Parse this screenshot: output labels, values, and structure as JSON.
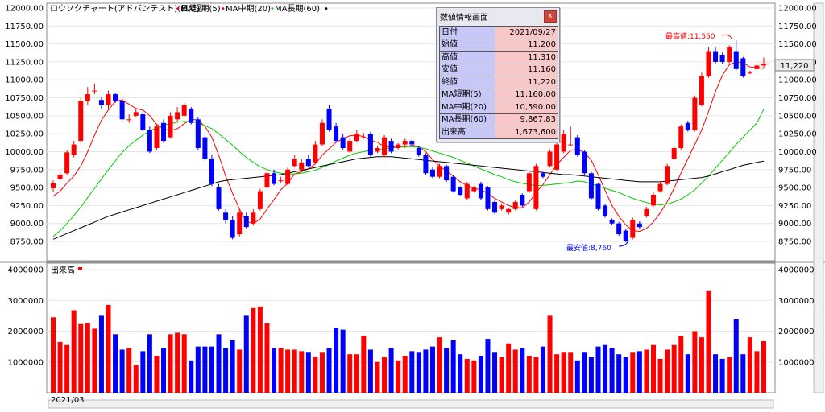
{
  "legend": {
    "chart_title": "ロウソクチャート(アドバンテスト)(日足)",
    "ma_short": "MA短期(5)",
    "ma_mid": "MA中期(20)",
    "ma_long": "MA長期(60)"
  },
  "volume_legend": "出来高",
  "date_label": "2021/03",
  "price_ticks": [
    "12000.00",
    "11750.00",
    "11500.00",
    "11250.00",
    "11000.00",
    "10750.00",
    "10500.00",
    "10250.00",
    "10000.00",
    "9750.00",
    "9500.00",
    "9250.00",
    "9000.00",
    "8750.00"
  ],
  "volume_ticks": [
    "4000000",
    "3000000",
    "2000000",
    "1000000"
  ],
  "current_price_tag": "11,220",
  "high_annotation": "最高値:11,550",
  "low_annotation": "最安値:8,760",
  "colors": {
    "up": "#ff0000",
    "down": "#0000ff",
    "ma_short": "#ff0000",
    "ma_mid": "#00cc00",
    "ma_long": "#000000",
    "axis_bg": "#ffffff"
  },
  "info_panel": {
    "title": "数値情報画面",
    "close": "x",
    "rows": [
      {
        "label": "日付",
        "value": "2021/09/27"
      },
      {
        "label": "始値",
        "value": "11,200"
      },
      {
        "label": "高値",
        "value": "11,310"
      },
      {
        "label": "安値",
        "value": "11,160"
      },
      {
        "label": "終値",
        "value": "11,220"
      },
      {
        "label": "MA短期(5)",
        "value": "11,160.00"
      },
      {
        "label": "MA中期(20)",
        "value": "10,590.00"
      },
      {
        "label": "MA長期(60)",
        "value": "9,867.83"
      },
      {
        "label": "出来高",
        "value": "1,673,600"
      }
    ]
  },
  "chart_data": [
    {
      "type": "candlestick",
      "ylim": [
        8600,
        12000
      ],
      "open": [
        9490,
        9620,
        9700,
        9950,
        10150,
        10700,
        10850,
        10720,
        10650,
        10800,
        10700,
        10450,
        10500,
        10520,
        10300,
        10050,
        10400,
        10200,
        10450,
        10500,
        10600,
        10450,
        10200,
        9900,
        9500,
        9150,
        9050,
        8850,
        9100,
        9000,
        9200,
        9500,
        9700,
        9600,
        9550,
        9800,
        9750,
        9900,
        9850,
        10100,
        10600,
        10350,
        10200,
        10000,
        10150,
        10200,
        10250,
        10000,
        9950,
        10150,
        10050,
        10100,
        10150,
        10050,
        9950,
        9750,
        9650,
        9800,
        9650,
        9500,
        9350,
        9450,
        9550,
        9500,
        9300,
        9200,
        9150,
        9200,
        9400,
        9450,
        9200,
        9700,
        9800,
        9750,
        10000,
        10100,
        10200,
        10000,
        9700,
        9550,
        9250,
        9050,
        9000,
        8900,
        8800,
        9000,
        9100,
        9250,
        9450,
        9550,
        9900,
        10050,
        10400,
        10300,
        10650,
        11050,
        11400,
        11350,
        11250,
        11400,
        11300,
        11100,
        11150,
        11200
      ],
      "close": [
        9560,
        9680,
        9990,
        10100,
        10700,
        10800,
        10850,
        10650,
        10800,
        10700,
        10450,
        10450,
        10550,
        10300,
        10000,
        10350,
        10150,
        10500,
        10550,
        10650,
        10400,
        10050,
        9900,
        9550,
        9200,
        9050,
        8800,
        9150,
        8950,
        9150,
        9450,
        9700,
        9550,
        9600,
        9750,
        9900,
        9850,
        9800,
        10100,
        10400,
        10300,
        10150,
        10050,
        10150,
        10250,
        10200,
        9950,
        10050,
        10200,
        10000,
        10100,
        10150,
        10100,
        9950,
        9700,
        9650,
        9800,
        9600,
        9450,
        9400,
        9550,
        9500,
        9350,
        9200,
        9150,
        9250,
        9200,
        9300,
        9250,
        9700,
        9800,
        9650,
        10000,
        10100,
        10250,
        10100,
        9950,
        9700,
        9350,
        9200,
        9100,
        9000,
        8850,
        8760,
        9050,
        8950,
        9200,
        9400,
        9550,
        9800,
        10050,
        10350,
        10300,
        10750,
        11050,
        11400,
        11250,
        11250,
        11450,
        11150,
        11050,
        11100,
        11200,
        11220
      ],
      "high": [
        9600,
        9720,
        10020,
        10150,
        10750,
        10900,
        10950,
        10760,
        10850,
        10820,
        10750,
        10520,
        10600,
        10560,
        10350,
        10380,
        10450,
        10550,
        10620,
        10680,
        10620,
        10480,
        10230,
        9950,
        9550,
        9200,
        9100,
        9200,
        9150,
        9200,
        9480,
        9750,
        9750,
        9650,
        9780,
        9950,
        9900,
        9950,
        10150,
        10450,
        10650,
        10400,
        10250,
        10180,
        10300,
        10260,
        10280,
        10080,
        10230,
        10180,
        10120,
        10180,
        10170,
        10080,
        9980,
        9780,
        9830,
        9820,
        9680,
        9520,
        9580,
        9520,
        9580,
        9520,
        9320,
        9280,
        9220,
        9320,
        9420,
        9720,
        9830,
        9720,
        10030,
        10150,
        10300,
        10350,
        10230,
        10020,
        9720,
        9570,
        9270,
        9070,
        9020,
        8920,
        9080,
        9030,
        9230,
        9430,
        9580,
        9830,
        10080,
        10380,
        10430,
        10780,
        11100,
        11450,
        11450,
        11380,
        11480,
        11550,
        11320,
        11130,
        11230,
        11310
      ],
      "low": [
        9440,
        9590,
        9680,
        9920,
        10120,
        10650,
        10800,
        10600,
        10600,
        10680,
        10420,
        10400,
        10480,
        10280,
        9980,
        10020,
        10120,
        10180,
        10420,
        10480,
        10380,
        10020,
        9870,
        9520,
        9180,
        9000,
        8780,
        8820,
        8930,
        8970,
        9180,
        9480,
        9530,
        9570,
        9530,
        9780,
        9730,
        9780,
        9830,
        10080,
        10280,
        10130,
        10030,
        9980,
        10130,
        10180,
        9930,
        9980,
        9930,
        9980,
        10030,
        10080,
        10080,
        9930,
        9680,
        9630,
        9630,
        9580,
        9430,
        9380,
        9330,
        9430,
        9330,
        9180,
        9130,
        9180,
        9120,
        9180,
        9230,
        9420,
        9180,
        9630,
        9780,
        9730,
        9980,
        10080,
        9930,
        9680,
        9330,
        9180,
        9080,
        8980,
        8830,
        8740,
        8780,
        8930,
        9080,
        9230,
        9430,
        9530,
        9880,
        10030,
        10280,
        10280,
        10630,
        11030,
        11230,
        11220,
        11230,
        11130,
        11030,
        11080,
        11130,
        11160
      ]
    },
    {
      "type": "line",
      "series": [
        {
          "name": "MA短期(5)",
          "values": [
            9380,
            9450,
            9560,
            9660,
            9800,
            10000,
            10230,
            10440,
            10580,
            10700,
            10720,
            10660,
            10600,
            10580,
            10500,
            10380,
            10320,
            10290,
            10320,
            10390,
            10450,
            10440,
            10350,
            10200,
            9950,
            9660,
            9420,
            9200,
            9030,
            9000,
            9060,
            9200,
            9330,
            9470,
            9560,
            9690,
            9720,
            9760,
            9830,
            9950,
            10040,
            10130,
            10180,
            10220,
            10230,
            10210,
            10160,
            10130,
            10070,
            10060,
            10080,
            10060,
            10090,
            10070,
            10000,
            9890,
            9800,
            9730,
            9660,
            9580,
            9530,
            9490,
            9470,
            9420,
            9350,
            9300,
            9250,
            9220,
            9220,
            9300,
            9430,
            9540,
            9680,
            9820,
            9920,
            10020,
            10030,
            9990,
            9880,
            9680,
            9460,
            9250,
            9100,
            8980,
            8900,
            8890,
            8930,
            9020,
            9150,
            9300,
            9490,
            9700,
            9900,
            10100,
            10300,
            10560,
            10840,
            11060,
            11210,
            11250,
            11240,
            11180,
            11170,
            11160
          ]
        },
        {
          "name": "MA中期(20)",
          "values": [
            8820,
            8900,
            9000,
            9110,
            9230,
            9360,
            9490,
            9620,
            9750,
            9870,
            9990,
            10080,
            10160,
            10230,
            10290,
            10330,
            10370,
            10390,
            10410,
            10420,
            10420,
            10400,
            10360,
            10320,
            10250,
            10170,
            10090,
            10000,
            9920,
            9850,
            9790,
            9750,
            9720,
            9700,
            9690,
            9690,
            9700,
            9720,
            9740,
            9780,
            9820,
            9870,
            9910,
            9950,
            9980,
            10000,
            10020,
            10030,
            10040,
            10050,
            10060,
            10070,
            10070,
            10060,
            10040,
            10010,
            9980,
            9950,
            9920,
            9880,
            9840,
            9800,
            9760,
            9720,
            9680,
            9650,
            9610,
            9580,
            9560,
            9540,
            9530,
            9530,
            9540,
            9550,
            9560,
            9570,
            9590,
            9580,
            9550,
            9520,
            9490,
            9460,
            9430,
            9390,
            9350,
            9320,
            9290,
            9270,
            9260,
            9270,
            9300,
            9340,
            9400,
            9470,
            9560,
            9660,
            9770,
            9880,
            9990,
            10100,
            10200,
            10300,
            10400,
            10590
          ]
        },
        {
          "name": "MA長期(60)",
          "values": [
            8780,
            8820,
            8860,
            8900,
            8940,
            8980,
            9020,
            9060,
            9100,
            9130,
            9160,
            9190,
            9220,
            9250,
            9280,
            9310,
            9340,
            9370,
            9400,
            9430,
            9460,
            9490,
            9520,
            9550,
            9580,
            9600,
            9610,
            9620,
            9630,
            9640,
            9650,
            9660,
            9670,
            9680,
            9700,
            9720,
            9740,
            9760,
            9780,
            9800,
            9820,
            9840,
            9860,
            9880,
            9900,
            9910,
            9920,
            9930,
            9930,
            9930,
            9920,
            9910,
            9900,
            9890,
            9880,
            9870,
            9860,
            9850,
            9840,
            9830,
            9820,
            9810,
            9800,
            9790,
            9780,
            9770,
            9760,
            9750,
            9740,
            9730,
            9720,
            9710,
            9700,
            9690,
            9680,
            9680,
            9670,
            9660,
            9650,
            9640,
            9630,
            9620,
            9610,
            9600,
            9590,
            9580,
            9580,
            9580,
            9580,
            9590,
            9600,
            9610,
            9620,
            9630,
            9640,
            9660,
            9690,
            9720,
            9750,
            9780,
            9810,
            9830,
            9850,
            9868
          ]
        }
      ]
    },
    {
      "type": "bar",
      "ylim": [
        0,
        4000000
      ],
      "values": [
        2450000,
        1650000,
        1550000,
        2680000,
        2230000,
        2250000,
        2080000,
        2500000,
        2850000,
        1900000,
        1400000,
        1450000,
        900000,
        1350000,
        1900000,
        1200000,
        1450000,
        1900000,
        1950000,
        1900000,
        1050000,
        1500000,
        1500000,
        1500000,
        1900000,
        1450000,
        1700000,
        1400000,
        2500000,
        2750000,
        2800000,
        2250000,
        1450000,
        1450000,
        1400000,
        1400000,
        1350000,
        1300000,
        1150000,
        1300000,
        1450000,
        2100000,
        2050000,
        1250000,
        1250000,
        1850000,
        1400000,
        1000000,
        1150000,
        1450000,
        1050000,
        1200000,
        1350000,
        1300000,
        1400000,
        1500000,
        1800000,
        1450000,
        1700000,
        1250000,
        1100000,
        1050000,
        1200000,
        1750000,
        1300000,
        1150000,
        1600000,
        1400000,
        1450000,
        1200000,
        1150000,
        1500000,
        2500000,
        1250000,
        1300000,
        1300000,
        1050000,
        1300000,
        1150000,
        1500000,
        1550000,
        1450000,
        1250000,
        1150000,
        1300000,
        1350000,
        1400000,
        1550000,
        1100000,
        1400000,
        1550000,
        1850000,
        1250000,
        2000000,
        1800000,
        3300000,
        1250000,
        1100000,
        1150000,
        2400000,
        1250000,
        1800000,
        1350000,
        1673600
      ]
    }
  ]
}
